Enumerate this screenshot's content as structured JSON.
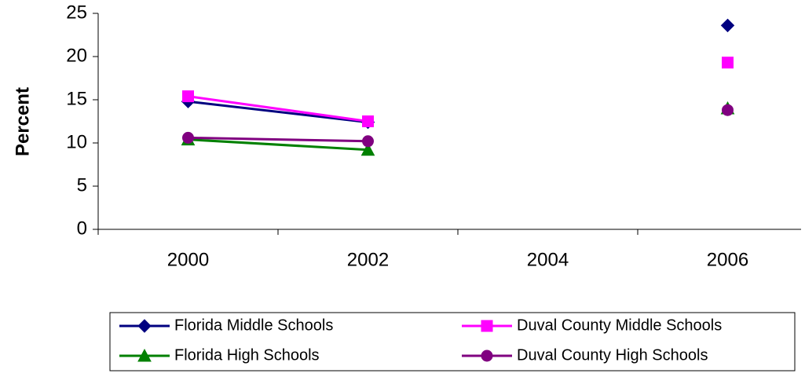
{
  "chart_data": {
    "type": "line",
    "y_label": "Percent",
    "categories": [
      "2000",
      "2002",
      "2004",
      "2006"
    ],
    "series": [
      {
        "name": "Florida Middle Schools",
        "color": "#000080",
        "marker": "diamond",
        "values": [
          14.8,
          12.4,
          null,
          23.6
        ]
      },
      {
        "name": "Duval County Middle Schools",
        "color": "#ff00ff",
        "marker": "square",
        "values": [
          15.4,
          12.5,
          null,
          19.3
        ]
      },
      {
        "name": "Florida High Schools",
        "color": "#008000",
        "marker": "triangle",
        "values": [
          10.4,
          9.2,
          null,
          14.0
        ]
      },
      {
        "name": "Duval County High Schools",
        "color": "#800080",
        "marker": "circle",
        "values": [
          10.6,
          10.2,
          null,
          13.8
        ]
      }
    ],
    "ylim": [
      0,
      25
    ],
    "yticks": [
      0,
      5,
      10,
      15,
      20,
      25
    ],
    "grid": false,
    "legend": "bottom"
  }
}
